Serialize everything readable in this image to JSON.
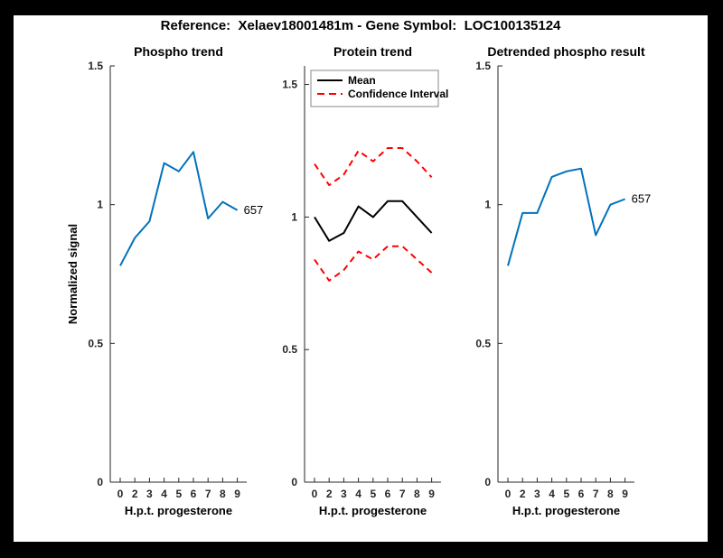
{
  "figure": {
    "title": "Reference:  Xelaev18001481m - Gene Symbol:  LOC100135124"
  },
  "colors": {
    "background": "#000000",
    "canvas": "#FFFFFF",
    "axis": "#262626",
    "line_blue": "#0072BD",
    "ci_red": "#FF0000",
    "mean_black": "#000000",
    "legend_border": "#888888"
  },
  "chart_data": [
    {
      "type": "line",
      "title": "Phospho trend",
      "xlabel": "H.p.t. progesterone",
      "ylabel": "Normalized signal",
      "categories": [
        "0",
        "2",
        "3",
        "4",
        "5",
        "6",
        "7",
        "8",
        "9"
      ],
      "yticks": [
        0,
        0.5,
        1,
        1.5
      ],
      "ytick_labels": [
        "0",
        "0.5",
        "1",
        "1.5"
      ],
      "ylim": [
        0,
        1.5
      ],
      "grid": false,
      "legend": null,
      "series": [
        {
          "name": "657",
          "color": "#0072BD",
          "style": "solid",
          "values": [
            0.78,
            0.88,
            0.94,
            1.15,
            1.12,
            1.19,
            0.95,
            1.01,
            0.98
          ],
          "end_label": "657"
        }
      ]
    },
    {
      "type": "line",
      "title": "Protein trend",
      "xlabel": "H.p.t. progesterone",
      "ylabel": "",
      "categories": [
        "0",
        "2",
        "3",
        "4",
        "5",
        "6",
        "7",
        "8",
        "9"
      ],
      "yticks": [
        0,
        0.5,
        1,
        1.5
      ],
      "ytick_labels": [
        "0",
        "0.5",
        "1",
        "1.5"
      ],
      "ylim": [
        0,
        1.57
      ],
      "grid": false,
      "legend": {
        "position": "top-left",
        "entries": [
          {
            "label": "Mean",
            "color": "#000000",
            "style": "solid"
          },
          {
            "label": "Confidence Interval",
            "color": "#FF0000",
            "style": "dashed"
          }
        ]
      },
      "series": [
        {
          "name": "Mean",
          "color": "#000000",
          "style": "solid",
          "values": [
            1.0,
            0.91,
            0.94,
            1.04,
            1.0,
            1.06,
            1.06,
            1.0,
            0.94
          ],
          "end_label": null
        },
        {
          "name": "Confidence Interval upper",
          "color": "#FF0000",
          "style": "dashed",
          "values": [
            1.2,
            1.12,
            1.16,
            1.25,
            1.21,
            1.26,
            1.26,
            1.21,
            1.15
          ],
          "end_label": null
        },
        {
          "name": "Confidence Interval lower",
          "color": "#FF0000",
          "style": "dashed",
          "values": [
            0.84,
            0.76,
            0.8,
            0.87,
            0.84,
            0.89,
            0.89,
            0.84,
            0.79
          ],
          "end_label": null
        }
      ]
    },
    {
      "type": "line",
      "title": "Detrended phospho result",
      "xlabel": "H.p.t. progesterone",
      "ylabel": "",
      "categories": [
        "0",
        "2",
        "3",
        "4",
        "5",
        "6",
        "7",
        "8",
        "9"
      ],
      "yticks": [
        0,
        0.5,
        1,
        1.5
      ],
      "ytick_labels": [
        "0",
        "0.5",
        "1",
        "1.5"
      ],
      "ylim": [
        0,
        1.5
      ],
      "grid": false,
      "legend": null,
      "series": [
        {
          "name": "657",
          "color": "#0072BD",
          "style": "solid",
          "values": [
            0.78,
            0.97,
            0.97,
            1.1,
            1.12,
            1.13,
            0.89,
            1.0,
            1.02
          ],
          "end_label": "657"
        }
      ]
    }
  ]
}
